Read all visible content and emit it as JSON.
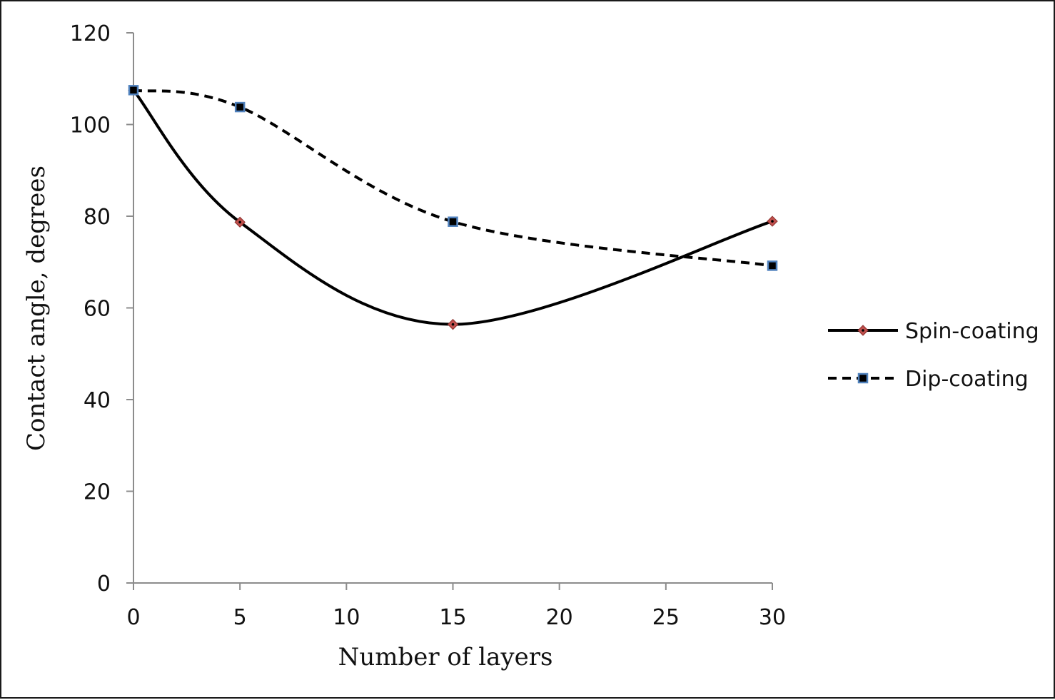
{
  "chart_data": {
    "type": "line",
    "title": "",
    "xlabel": "Number of layers",
    "ylabel": "Contact angle, degrees",
    "xlim": [
      0,
      30
    ],
    "ylim": [
      0,
      120
    ],
    "x_ticks": [
      0,
      5,
      10,
      15,
      20,
      25,
      30
    ],
    "y_ticks": [
      0,
      20,
      40,
      60,
      80,
      100,
      120
    ],
    "grid": false,
    "smooth": true,
    "legend_position": "right",
    "series": [
      {
        "name": "Spin-coating",
        "x": [
          0,
          5,
          15,
          30
        ],
        "y": [
          107.5,
          78.7,
          56.4,
          78.9
        ],
        "line_style": "solid",
        "line_color": "#000000",
        "marker": "diamond",
        "marker_color": "#c0504d"
      },
      {
        "name": "Dip-coating",
        "x": [
          0,
          5,
          15,
          30
        ],
        "y": [
          107.5,
          103.8,
          78.8,
          69.2
        ],
        "line_style": "dashed",
        "line_color": "#000000",
        "marker": "square",
        "marker_color": "#4f81bd"
      }
    ]
  }
}
